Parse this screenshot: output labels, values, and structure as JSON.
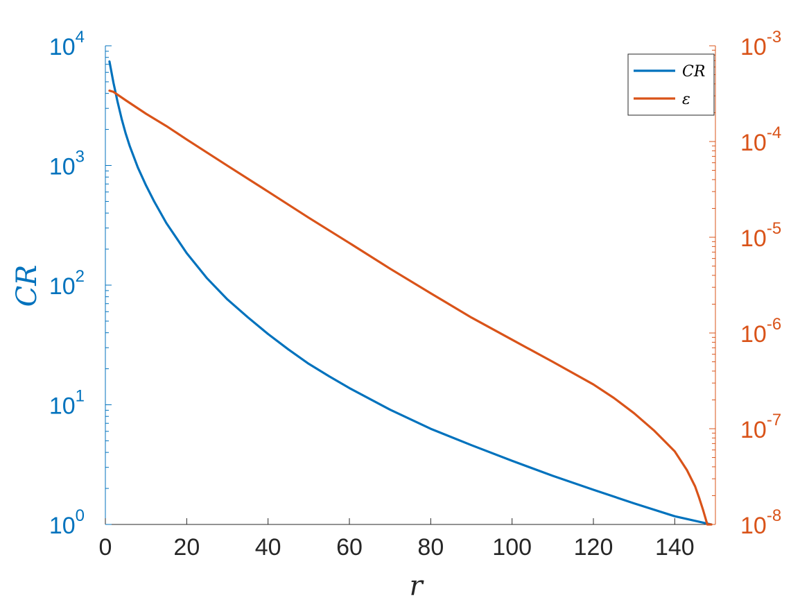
{
  "chart_data": {
    "type": "line",
    "xlabel": "r",
    "ylabel_left": "CR",
    "xlim": [
      0,
      150
    ],
    "xticks": [
      "0",
      "20",
      "40",
      "60",
      "80",
      "100",
      "120",
      "140"
    ],
    "xtick_values": [
      0,
      20,
      40,
      60,
      80,
      100,
      120,
      140
    ],
    "y_left": {
      "scale": "log",
      "lim": [
        1,
        10000
      ],
      "ticks": [
        {
          "value": 1,
          "base": "10",
          "exp": "0"
        },
        {
          "value": 10,
          "base": "10",
          "exp": "1"
        },
        {
          "value": 100,
          "base": "10",
          "exp": "2"
        },
        {
          "value": 1000,
          "base": "10",
          "exp": "3"
        },
        {
          "value": 10000,
          "base": "10",
          "exp": "4"
        }
      ]
    },
    "y_right": {
      "scale": "log",
      "lim": [
        1e-08,
        0.001
      ],
      "ticks": [
        {
          "value": 1e-08,
          "base": "10",
          "exp": "-8"
        },
        {
          "value": 1e-07,
          "base": "10",
          "exp": "-7"
        },
        {
          "value": 1e-06,
          "base": "10",
          "exp": "-6"
        },
        {
          "value": 1e-05,
          "base": "10",
          "exp": "-5"
        },
        {
          "value": 0.0001,
          "base": "10",
          "exp": "-4"
        },
        {
          "value": 0.001,
          "base": "10",
          "exp": "-3"
        }
      ]
    },
    "grid": false,
    "legend_position": "top-right",
    "series": [
      {
        "name": "CR",
        "axis": "left",
        "color": "#0072BD",
        "x": [
          1,
          2,
          3,
          4,
          5,
          6,
          8,
          10,
          12,
          15,
          20,
          25,
          30,
          35,
          40,
          45,
          50,
          55,
          60,
          70,
          80,
          90,
          100,
          110,
          120,
          130,
          140,
          149
        ],
        "y": [
          7400,
          4900,
          3400,
          2450,
          1850,
          1450,
          960,
          680,
          500,
          330,
          185,
          114,
          76,
          54,
          39,
          29,
          22,
          17.3,
          13.8,
          9.1,
          6.3,
          4.6,
          3.4,
          2.55,
          1.95,
          1.5,
          1.17,
          1.0
        ]
      },
      {
        "name": "ε",
        "axis": "right",
        "color": "#D95319",
        "x": [
          1,
          2,
          5,
          10,
          15,
          20,
          30,
          40,
          50,
          60,
          70,
          80,
          90,
          100,
          110,
          120,
          125,
          130,
          135,
          140,
          143,
          145,
          146,
          147,
          148,
          149
        ],
        "y": [
          0.00034,
          0.00033,
          0.00027,
          0.000195,
          0.000145,
          0.000105,
          5.6e-05,
          3e-05,
          1.6e-05,
          8.7e-06,
          4.7e-06,
          2.6e-06,
          1.45e-06,
          8.5e-07,
          5e-07,
          2.9e-07,
          2.1e-07,
          1.45e-07,
          9.5e-08,
          5.8e-08,
          3.7e-08,
          2.5e-08,
          1.9e-08,
          1.4e-08,
          8e-09,
          2e-09
        ]
      }
    ]
  }
}
